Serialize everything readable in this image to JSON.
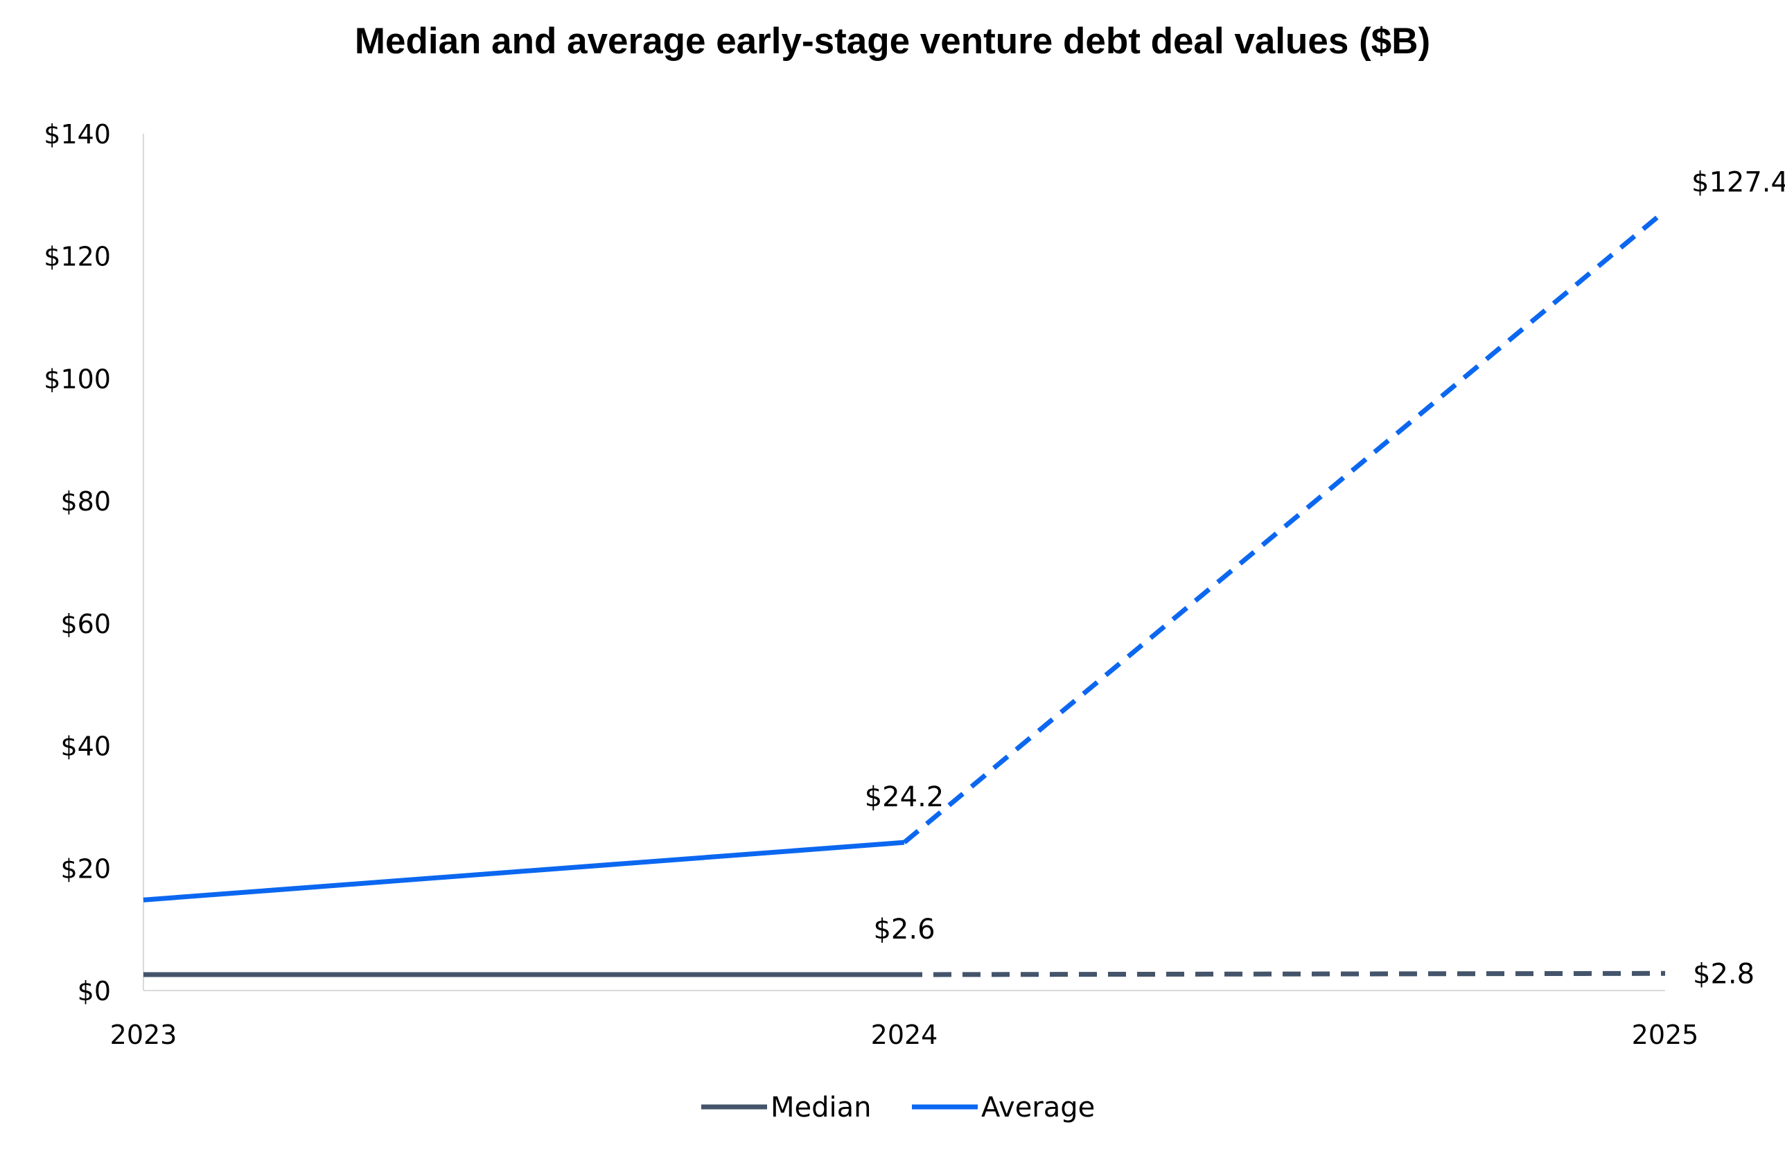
{
  "chart_data": {
    "type": "line",
    "title": "Median and average early-stage venture debt deal values ($B)",
    "categories": [
      "2023",
      "2024",
      "2025"
    ],
    "ylim": [
      0,
      140
    ],
    "yticks": [
      0,
      20,
      40,
      60,
      80,
      100,
      120,
      140
    ],
    "ytick_labels": [
      "$0",
      "$20",
      "$40",
      "$60",
      "$80",
      "$100",
      "$120",
      "$140"
    ],
    "grid": false,
    "legend_position": "bottom",
    "series": [
      {
        "name": "Median",
        "color": "#44546A",
        "values": [
          2.6,
          2.6,
          2.8
        ],
        "line_styles": [
          "solid",
          "dashed"
        ],
        "data_labels": [
          "",
          "$2.6",
          "$2.8"
        ]
      },
      {
        "name": "Average",
        "color": "#0B67F0",
        "values": [
          14.8,
          24.2,
          127.4
        ],
        "line_styles": [
          "solid",
          "dashed"
        ],
        "data_labels": [
          "",
          "$24.2",
          "$127.4"
        ]
      }
    ]
  }
}
